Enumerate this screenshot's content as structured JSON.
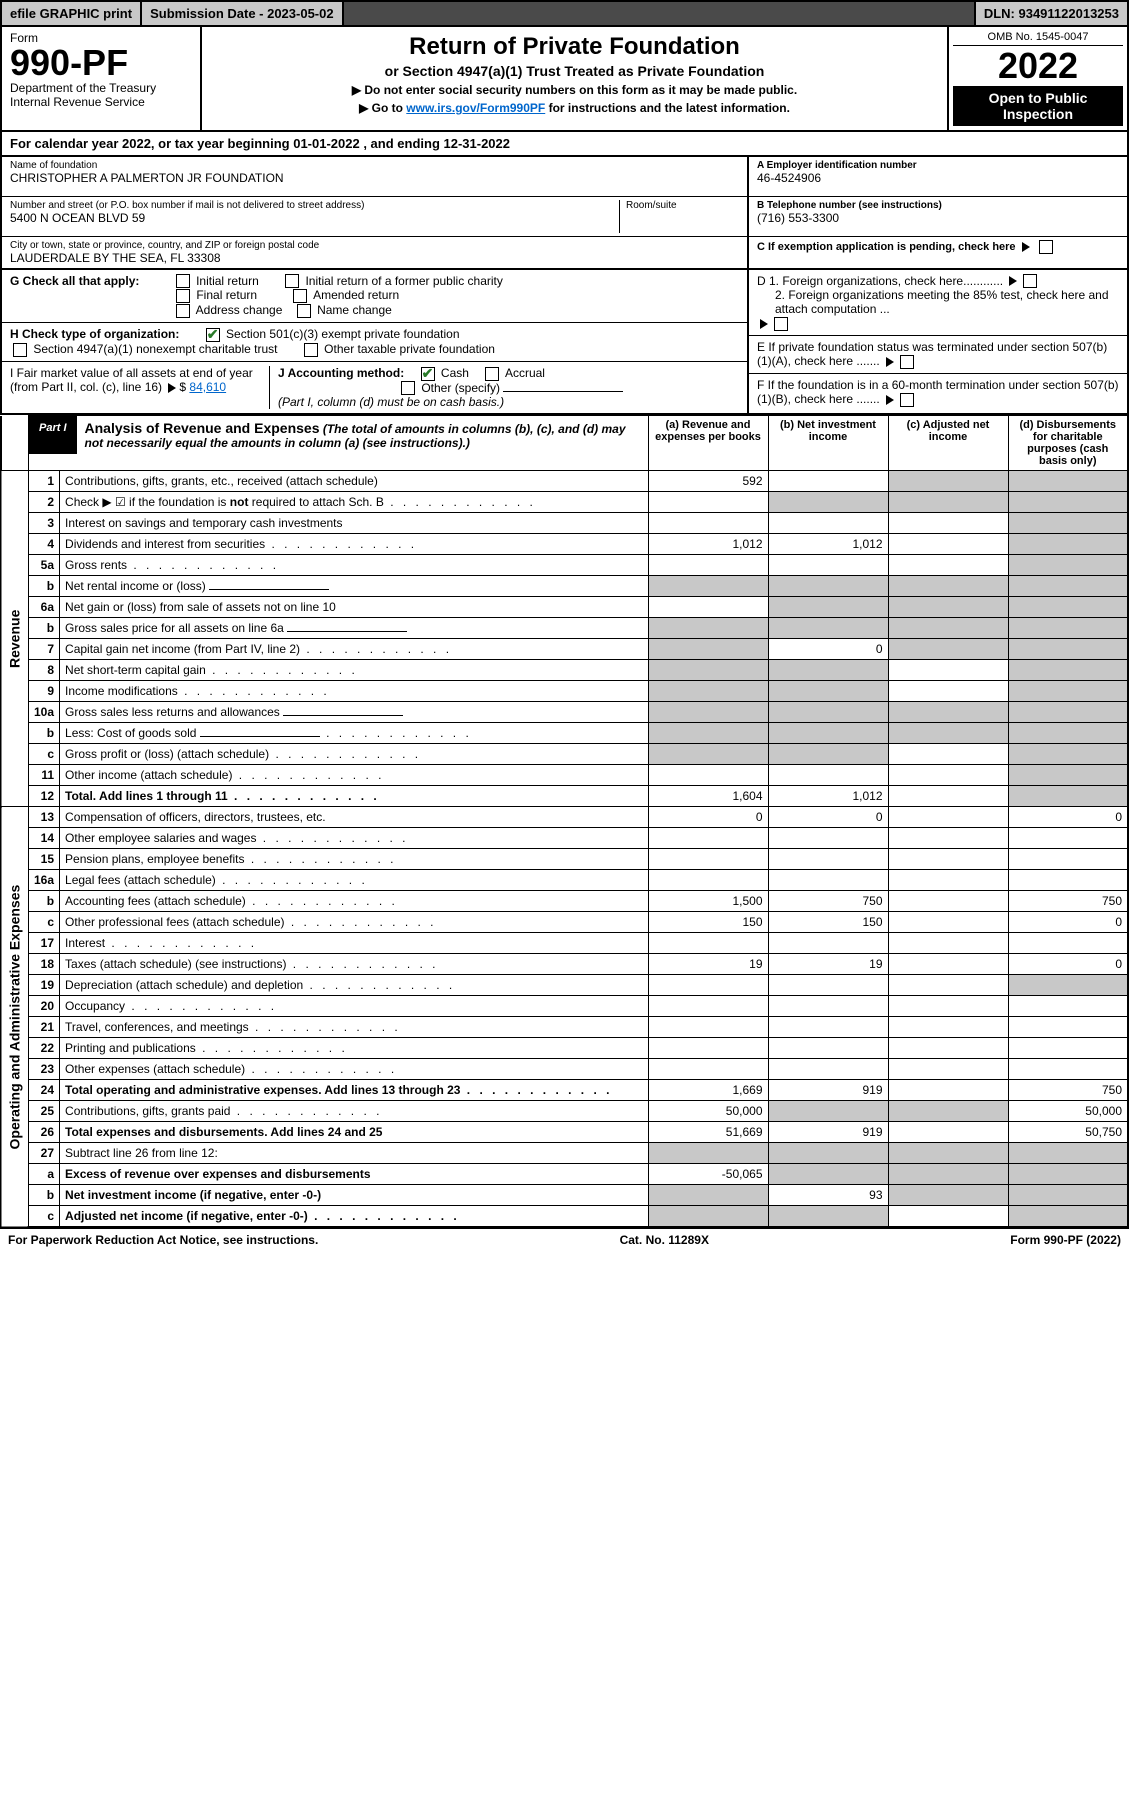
{
  "topbar": {
    "efile": "efile GRAPHIC print",
    "submission_label": "Submission Date - 2023-05-02",
    "dln": "DLN: 93491122013253"
  },
  "header": {
    "form_word": "Form",
    "form_number": "990-PF",
    "dept": "Department of the Treasury",
    "irs": "Internal Revenue Service",
    "title": "Return of Private Foundation",
    "subtitle": "or Section 4947(a)(1) Trust Treated as Private Foundation",
    "note1": "▶ Do not enter social security numbers on this form as it may be made public.",
    "note2_prefix": "▶ Go to ",
    "note2_link": "www.irs.gov/Form990PF",
    "note2_suffix": " for instructions and the latest information.",
    "omb": "OMB No. 1545-0047",
    "year": "2022",
    "open_public": "Open to Public Inspection"
  },
  "cal_year": "For calendar year 2022, or tax year beginning 01-01-2022           , and ending 12-31-2022",
  "info": {
    "name_lbl": "Name of foundation",
    "name_val": "CHRISTOPHER A PALMERTON JR FOUNDATION",
    "addr_lbl": "Number and street (or P.O. box number if mail is not delivered to street address)",
    "addr_val": "5400 N OCEAN BLVD 59",
    "room_lbl": "Room/suite",
    "city_lbl": "City or town, state or province, country, and ZIP or foreign postal code",
    "city_val": "LAUDERDALE BY THE SEA, FL  33308",
    "a_lbl": "A Employer identification number",
    "a_val": "46-4524906",
    "b_lbl": "B Telephone number (see instructions)",
    "b_val": "(716) 553-3300",
    "c_lbl": "C If exemption application is pending, check here",
    "d1_lbl": "D 1. Foreign organizations, check here............",
    "d2_lbl": "2. Foreign organizations meeting the 85% test, check here and attach computation ...",
    "e_lbl": "E  If private foundation status was terminated under section 507(b)(1)(A), check here .......",
    "f_lbl": "F  If the foundation is in a 60-month termination under section 507(b)(1)(B), check here .......",
    "g_lbl": "G Check all that apply:",
    "g_opts": [
      "Initial return",
      "Initial return of a former public charity",
      "Final return",
      "Amended return",
      "Address change",
      "Name change"
    ],
    "h_lbl": "H Check type of organization:",
    "h_opt1": "Section 501(c)(3) exempt private foundation",
    "h_opt2": "Section 4947(a)(1) nonexempt charitable trust",
    "h_opt3": "Other taxable private foundation",
    "i_lbl": "I Fair market value of all assets at end of year (from Part II, col. (c), line 16)",
    "i_val": "84,610",
    "j_lbl": "J Accounting method:",
    "j_opts": [
      "Cash",
      "Accrual",
      "Other (specify)"
    ],
    "j_note": "(Part I, column (d) must be on cash basis.)"
  },
  "part1": {
    "tag": "Part I",
    "title": "Analysis of Revenue and Expenses",
    "title_note": "(The total of amounts in columns (b), (c), and (d) may not necessarily equal the amounts in column (a) (see instructions).)",
    "col_a": "(a)  Revenue and expenses per books",
    "col_b": "(b)  Net investment income",
    "col_c": "(c)  Adjusted net income",
    "col_d": "(d)  Disbursements for charitable purposes (cash basis only)"
  },
  "sections": {
    "revenue": "Revenue",
    "opex": "Operating and Administrative Expenses"
  },
  "rows": [
    {
      "n": "1",
      "d": "Contributions, gifts, grants, etc., received (attach schedule)",
      "a": "592",
      "b": "",
      "c": "g",
      "dd": "g"
    },
    {
      "n": "2",
      "d": "Check ▶ ☑ if the foundation is not required to attach Sch. B",
      "dots": true,
      "a": "",
      "b": "g",
      "c": "g",
      "dd": "g",
      "strong_not": true
    },
    {
      "n": "3",
      "d": "Interest on savings and temporary cash investments",
      "a": "",
      "b": "",
      "c": "",
      "dd": "g"
    },
    {
      "n": "4",
      "d": "Dividends and interest from securities",
      "dots": true,
      "a": "1,012",
      "b": "1,012",
      "c": "",
      "dd": "g"
    },
    {
      "n": "5a",
      "d": "Gross rents",
      "dots": true,
      "a": "",
      "b": "",
      "c": "",
      "dd": "g"
    },
    {
      "n": "b",
      "d": "Net rental income or (loss)",
      "underline": true,
      "a": "g",
      "b": "g",
      "c": "g",
      "dd": "g"
    },
    {
      "n": "6a",
      "d": "Net gain or (loss) from sale of assets not on line 10",
      "a": "",
      "b": "g",
      "c": "g",
      "dd": "g"
    },
    {
      "n": "b",
      "d": "Gross sales price for all assets on line 6a",
      "underline": true,
      "a": "g",
      "b": "g",
      "c": "g",
      "dd": "g"
    },
    {
      "n": "7",
      "d": "Capital gain net income (from Part IV, line 2)",
      "dots": true,
      "a": "g",
      "b": "0",
      "c": "g",
      "dd": "g"
    },
    {
      "n": "8",
      "d": "Net short-term capital gain",
      "dots": true,
      "a": "g",
      "b": "g",
      "c": "",
      "dd": "g"
    },
    {
      "n": "9",
      "d": "Income modifications",
      "dots": true,
      "a": "g",
      "b": "g",
      "c": "",
      "dd": "g"
    },
    {
      "n": "10a",
      "d": "Gross sales less returns and allowances",
      "underline": true,
      "a": "g",
      "b": "g",
      "c": "g",
      "dd": "g"
    },
    {
      "n": "b",
      "d": "Less: Cost of goods sold",
      "dots": true,
      "underline": true,
      "a": "g",
      "b": "g",
      "c": "g",
      "dd": "g"
    },
    {
      "n": "c",
      "d": "Gross profit or (loss) (attach schedule)",
      "dots": true,
      "a": "g",
      "b": "g",
      "c": "",
      "dd": "g"
    },
    {
      "n": "11",
      "d": "Other income (attach schedule)",
      "dots": true,
      "a": "",
      "b": "",
      "c": "",
      "dd": "g"
    },
    {
      "n": "12",
      "d": "Total. Add lines 1 through 11",
      "dots": true,
      "bold": true,
      "a": "1,604",
      "b": "1,012",
      "c": "",
      "dd": "g"
    }
  ],
  "rows2": [
    {
      "n": "13",
      "d": "Compensation of officers, directors, trustees, etc.",
      "a": "0",
      "b": "0",
      "c": "",
      "dd": "0"
    },
    {
      "n": "14",
      "d": "Other employee salaries and wages",
      "dots": true,
      "a": "",
      "b": "",
      "c": "",
      "dd": ""
    },
    {
      "n": "15",
      "d": "Pension plans, employee benefits",
      "dots": true,
      "a": "",
      "b": "",
      "c": "",
      "dd": ""
    },
    {
      "n": "16a",
      "d": "Legal fees (attach schedule)",
      "dots": true,
      "a": "",
      "b": "",
      "c": "",
      "dd": ""
    },
    {
      "n": "b",
      "d": "Accounting fees (attach schedule)",
      "dots": true,
      "a": "1,500",
      "b": "750",
      "c": "",
      "dd": "750"
    },
    {
      "n": "c",
      "d": "Other professional fees (attach schedule)",
      "dots": true,
      "a": "150",
      "b": "150",
      "c": "",
      "dd": "0"
    },
    {
      "n": "17",
      "d": "Interest",
      "dots": true,
      "a": "",
      "b": "",
      "c": "",
      "dd": ""
    },
    {
      "n": "18",
      "d": "Taxes (attach schedule) (see instructions)",
      "dots": true,
      "a": "19",
      "b": "19",
      "c": "",
      "dd": "0"
    },
    {
      "n": "19",
      "d": "Depreciation (attach schedule) and depletion",
      "dots": true,
      "a": "",
      "b": "",
      "c": "",
      "dd": "g"
    },
    {
      "n": "20",
      "d": "Occupancy",
      "dots": true,
      "a": "",
      "b": "",
      "c": "",
      "dd": ""
    },
    {
      "n": "21",
      "d": "Travel, conferences, and meetings",
      "dots": true,
      "a": "",
      "b": "",
      "c": "",
      "dd": ""
    },
    {
      "n": "22",
      "d": "Printing and publications",
      "dots": true,
      "a": "",
      "b": "",
      "c": "",
      "dd": ""
    },
    {
      "n": "23",
      "d": "Other expenses (attach schedule)",
      "dots": true,
      "a": "",
      "b": "",
      "c": "",
      "dd": ""
    },
    {
      "n": "24",
      "d": "Total operating and administrative expenses. Add lines 13 through 23",
      "dots": true,
      "bold": true,
      "a": "1,669",
      "b": "919",
      "c": "",
      "dd": "750"
    },
    {
      "n": "25",
      "d": "Contributions, gifts, grants paid",
      "dots": true,
      "a": "50,000",
      "b": "g",
      "c": "g",
      "dd": "50,000"
    },
    {
      "n": "26",
      "d": "Total expenses and disbursements. Add lines 24 and 25",
      "bold": true,
      "a": "51,669",
      "b": "919",
      "c": "",
      "dd": "50,750"
    },
    {
      "n": "27",
      "d": "Subtract line 26 from line 12:",
      "a": "g",
      "b": "g",
      "c": "g",
      "dd": "g"
    },
    {
      "n": "a",
      "d": "Excess of revenue over expenses and disbursements",
      "bold": true,
      "a": "-50,065",
      "b": "g",
      "c": "g",
      "dd": "g"
    },
    {
      "n": "b",
      "d": "Net investment income (if negative, enter -0-)",
      "bold": true,
      "a": "g",
      "b": "93",
      "c": "g",
      "dd": "g"
    },
    {
      "n": "c",
      "d": "Adjusted net income (if negative, enter -0-)",
      "dots": true,
      "bold": true,
      "a": "g",
      "b": "g",
      "c": "",
      "dd": "g"
    }
  ],
  "footer": {
    "left": "For Paperwork Reduction Act Notice, see instructions.",
    "mid": "Cat. No. 11289X",
    "right": "Form 990-PF (2022)"
  },
  "colors": {
    "grey": "#c8c8c8",
    "darkbar": "#4a4a4a",
    "link": "#0066cc",
    "check": "#2a7a2a"
  }
}
